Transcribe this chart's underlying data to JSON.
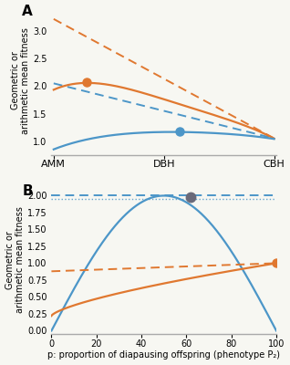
{
  "panel_A": {
    "x_labels": [
      "AMM",
      "DBH",
      "CBH"
    ],
    "ylim": [
      0.75,
      3.45
    ],
    "yticks": [
      1.0,
      1.5,
      2.0,
      2.5,
      3.0
    ],
    "blue_solid_dot_x": 0.57,
    "blue_solid_dot_y": 1.17,
    "orange_solid_dot_x": 0.15,
    "orange_solid_dot_y": 2.07,
    "blue_color": "#4c96c8",
    "orange_color": "#e07830"
  },
  "panel_B": {
    "xlim": [
      0,
      100
    ],
    "ylim": [
      -0.05,
      2.15
    ],
    "yticks": [
      0.0,
      0.25,
      0.5,
      0.75,
      1.0,
      1.25,
      1.5,
      1.75,
      2.0
    ],
    "xticks": [
      0,
      20,
      40,
      60,
      80,
      100
    ],
    "blue_dashed_y": 2.0,
    "dotted_line_y": 1.95,
    "blue_dot_x": 62,
    "blue_dot_y": 1.985,
    "orange_dot_x": 100,
    "orange_dot_y": 1.0,
    "blue_color": "#4c96c8",
    "orange_color": "#e07830",
    "dot_color_gray": "#6a6a7a",
    "xlabel": "p: proportion of diapausing offspring (phenotype P₂)"
  },
  "ylabel": "Geometric or\narithmetic mean fitness",
  "bg_color": "#f7f7f2"
}
